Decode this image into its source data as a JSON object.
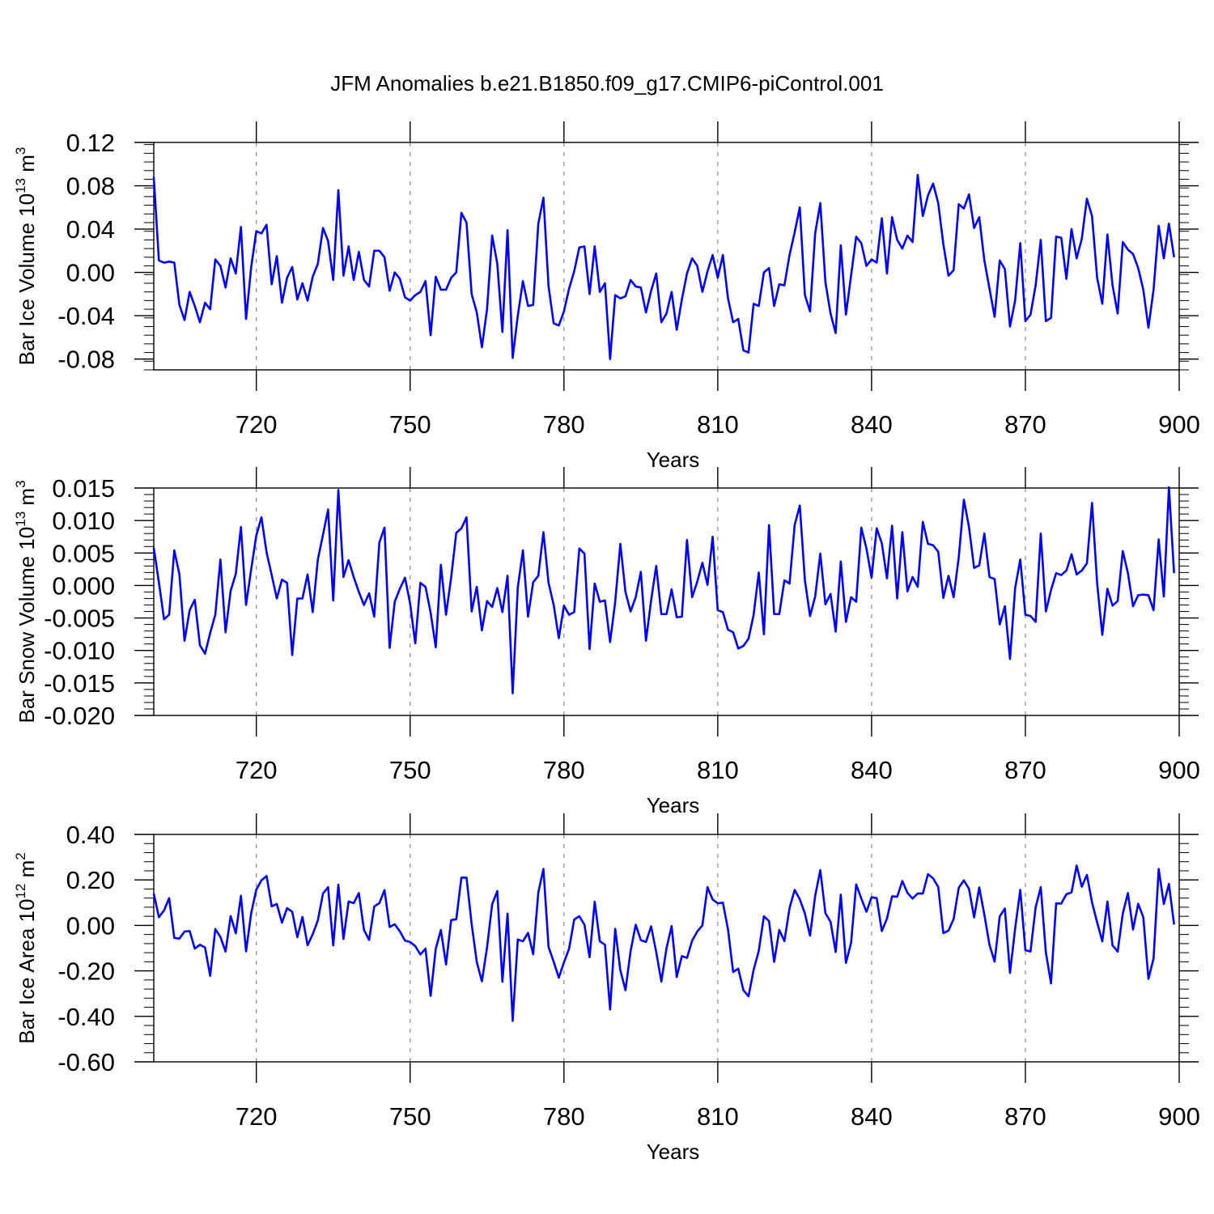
{
  "figure": {
    "title": "JFM Anomalies b.e21.B1850.f09_g17.CMIP6-piControl.001"
  },
  "colors": {
    "line": "#0000ff",
    "axis": "#000000",
    "grid": "#888888"
  },
  "chart_data": [
    {
      "type": "line",
      "ylabel": "Bar Ice Volume 10",
      "ylabel_exp": "13",
      "ylabel_unit": " m",
      "ylabel_unit_exp": "3",
      "xlabel": "Years",
      "xlim": [
        700,
        900
      ],
      "ylim": [
        -0.09,
        0.12
      ],
      "x_ticks": [
        720,
        750,
        780,
        810,
        840,
        870,
        900
      ],
      "x_tick_labels": [
        "720",
        "750",
        "780",
        "810",
        "840",
        "870",
        "900"
      ],
      "y_ticks": [
        -0.08,
        -0.04,
        0.0,
        0.04,
        0.08,
        0.12
      ],
      "y_tick_labels": [
        "-0.08",
        "-0.04",
        "0.00",
        "0.04",
        "0.08",
        "0.12"
      ],
      "y_minor_step": 0.008,
      "x_start": 700,
      "series": [
        {
          "name": "Bar Ice Volume",
          "values": [
            0.088,
            0.011,
            0.009,
            0.01,
            0.009,
            -0.03,
            -0.044,
            -0.018,
            -0.031,
            -0.046,
            -0.028,
            -0.034,
            0.012,
            0.006,
            -0.014,
            0.013,
            -0.001,
            0.042,
            -0.043,
            0.005,
            0.038,
            0.036,
            0.044,
            -0.011,
            0.015,
            -0.028,
            -0.005,
            0.005,
            -0.025,
            -0.01,
            -0.026,
            -0.004,
            0.008,
            0.041,
            0.029,
            -0.007,
            0.076,
            -0.003,
            0.024,
            -0.007,
            0.019,
            -0.007,
            -0.013,
            0.02,
            0.02,
            0.014,
            -0.017,
            0.0,
            -0.006,
            -0.023,
            -0.026,
            -0.021,
            -0.018,
            -0.008,
            -0.058,
            -0.004,
            -0.016,
            -0.016,
            -0.005,
            0.0,
            0.055,
            0.046,
            -0.02,
            -0.037,
            -0.069,
            -0.034,
            0.034,
            0.008,
            -0.055,
            0.039,
            -0.079,
            -0.04,
            -0.008,
            -0.031,
            -0.03,
            0.045,
            0.069,
            -0.013,
            -0.047,
            -0.049,
            -0.036,
            -0.015,
            0.001,
            0.023,
            0.024,
            -0.02,
            0.024,
            -0.018,
            -0.01,
            -0.08,
            -0.021,
            -0.024,
            -0.022,
            -0.007,
            -0.013,
            -0.014,
            -0.037,
            -0.017,
            -0.001,
            -0.046,
            -0.038,
            -0.018,
            -0.053,
            -0.025,
            -0.001,
            0.013,
            0.006,
            -0.018,
            0.001,
            0.016,
            -0.005,
            0.016,
            -0.024,
            -0.046,
            -0.043,
            -0.072,
            -0.074,
            -0.029,
            -0.031,
            0.0,
            0.004,
            -0.031,
            -0.011,
            -0.012,
            0.016,
            0.037,
            0.06,
            -0.021,
            -0.036,
            0.036,
            0.064,
            -0.009,
            -0.038,
            -0.056,
            0.025,
            -0.039,
            -0.003,
            0.033,
            0.027,
            0.006,
            0.012,
            0.009,
            0.05,
            -0.001,
            0.051,
            0.03,
            0.022,
            0.034,
            0.028,
            0.09,
            0.052,
            0.071,
            0.082,
            0.064,
            0.026,
            -0.003,
            0.002,
            0.063,
            0.059,
            0.072,
            0.041,
            0.051,
            0.011,
            -0.015,
            -0.041,
            0.011,
            0.003,
            -0.05,
            -0.026,
            0.027,
            -0.045,
            -0.039,
            -0.012,
            0.03,
            -0.045,
            -0.042,
            0.033,
            0.032,
            -0.006,
            0.04,
            0.013,
            0.031,
            0.068,
            0.052,
            -0.005,
            -0.029,
            0.035,
            -0.012,
            -0.038,
            0.028,
            0.021,
            0.017,
            0.004,
            -0.016,
            -0.051,
            -0.016,
            0.043,
            0.013,
            0.045,
            0.014
          ]
        }
      ]
    },
    {
      "type": "line",
      "ylabel": "Bar Snow Volume 10",
      "ylabel_exp": "13",
      "ylabel_unit": " m",
      "ylabel_unit_exp": "3",
      "xlabel": "Years",
      "xlim": [
        700,
        900
      ],
      "ylim": [
        -0.02,
        0.015
      ],
      "x_ticks": [
        720,
        750,
        780,
        810,
        840,
        870,
        900
      ],
      "x_tick_labels": [
        "720",
        "750",
        "780",
        "810",
        "840",
        "870",
        "900"
      ],
      "y_ticks": [
        -0.02,
        -0.015,
        -0.01,
        -0.005,
        0.0,
        0.005,
        0.01,
        0.015
      ],
      "y_tick_labels": [
        "-0.020",
        "-0.015",
        "-0.010",
        "-0.005",
        "0.000",
        "0.005",
        "0.010",
        "0.015"
      ],
      "y_minor_step": 0.001,
      "x_start": 700,
      "series": [
        {
          "name": "Bar Snow Volume",
          "values": [
            0.0058,
            0.0005,
            -0.0052,
            -0.0045,
            0.0054,
            0.0017,
            -0.0085,
            -0.0038,
            -0.0022,
            -0.0092,
            -0.0105,
            -0.0073,
            -0.0045,
            0.004,
            -0.0072,
            -0.0008,
            0.0018,
            0.009,
            -0.003,
            0.0025,
            0.0077,
            0.0105,
            0.0051,
            0.0016,
            -0.002,
            0.0009,
            0.0004,
            -0.0107,
            -0.002,
            -0.002,
            0.0017,
            -0.0041,
            0.004,
            0.0078,
            0.0117,
            -0.0023,
            0.0147,
            0.0013,
            0.0039,
            0.0013,
            -0.001,
            -0.003,
            -0.0012,
            -0.0048,
            0.0066,
            0.0089,
            -0.0096,
            -0.0025,
            -0.0005,
            0.0012,
            -0.0028,
            -0.0089,
            0.0004,
            -0.0002,
            -0.0042,
            -0.0095,
            0.0032,
            -0.0045,
            0.0012,
            0.0081,
            0.0088,
            0.0105,
            -0.004,
            -0.0002,
            -0.0069,
            -0.0024,
            -0.0033,
            -0.0004,
            -0.0041,
            0.0015,
            -0.0166,
            -0.0003,
            0.0054,
            -0.0048,
            0.0005,
            0.0015,
            0.0082,
            0.0004,
            -0.003,
            -0.0081,
            -0.0031,
            -0.0045,
            -0.0041,
            0.0057,
            0.0049,
            -0.0098,
            0.0003,
            -0.0025,
            -0.0023,
            -0.0087,
            -0.0025,
            0.0064,
            -0.001,
            -0.004,
            -0.0018,
            0.0021,
            -0.0085,
            -0.0023,
            0.003,
            -0.0044,
            -0.0044,
            -0.0006,
            -0.0049,
            -0.0048,
            0.007,
            -0.0018,
            0.0006,
            0.0035,
            0.0001,
            0.0075,
            -0.0038,
            -0.0041,
            -0.0068,
            -0.0072,
            -0.0097,
            -0.0093,
            -0.0082,
            -0.0045,
            0.002,
            -0.0075,
            0.0093,
            -0.0044,
            -0.0044,
            0.0008,
            0.0003,
            0.0093,
            0.0123,
            0.0008,
            -0.0047,
            -0.0017,
            0.0049,
            -0.0029,
            -0.0013,
            -0.0071,
            0.0037,
            -0.0056,
            -0.0018,
            -0.0025,
            0.0089,
            0.0057,
            0.0012,
            0.0088,
            0.0065,
            0.0011,
            0.0092,
            -0.002,
            0.0082,
            -0.0009,
            0.0013,
            -0.0002,
            0.0098,
            0.0064,
            0.0062,
            0.0052,
            -0.0019,
            0.0015,
            -0.0018,
            0.0043,
            0.0132,
            0.009,
            0.0027,
            0.0031,
            0.008,
            0.0013,
            0.001,
            -0.006,
            -0.0032,
            -0.0113,
            -0.0004,
            0.004,
            -0.0045,
            -0.0047,
            -0.0056,
            0.008,
            -0.004,
            -0.0007,
            0.0019,
            0.0016,
            0.0023,
            0.0048,
            0.0017,
            0.0023,
            0.0034,
            0.0127,
            0.0003,
            -0.0076,
            -0.0005,
            -0.0031,
            -0.0024,
            0.0053,
            0.0019,
            -0.0032,
            -0.0015,
            -0.0014,
            -0.0015,
            -0.0038,
            0.0071,
            -0.0017,
            0.0151,
            0.0019
          ]
        }
      ]
    },
    {
      "type": "line",
      "ylabel": "Bar Ice Area 10",
      "ylabel_exp": "12",
      "ylabel_unit": " m",
      "ylabel_unit_exp": "2",
      "xlabel": "Years",
      "xlim": [
        700,
        900
      ],
      "ylim": [
        -0.6,
        0.4
      ],
      "x_ticks": [
        720,
        750,
        780,
        810,
        840,
        870,
        900
      ],
      "x_tick_labels": [
        "720",
        "750",
        "780",
        "810",
        "840",
        "870",
        "900"
      ],
      "y_ticks": [
        -0.6,
        -0.4,
        -0.2,
        0.0,
        0.2,
        0.4
      ],
      "y_tick_labels": [
        "-0.60",
        "-0.40",
        "-0.20",
        "0.00",
        "0.20",
        "0.40"
      ],
      "y_minor_step": 0.04,
      "x_start": 700,
      "series": [
        {
          "name": "Bar Ice Area",
          "values": [
            0.14,
            0.036,
            0.066,
            0.12,
            -0.055,
            -0.058,
            -0.027,
            -0.025,
            -0.102,
            -0.085,
            -0.097,
            -0.222,
            -0.016,
            -0.051,
            -0.115,
            0.041,
            -0.035,
            0.13,
            -0.114,
            0.054,
            0.157,
            0.198,
            0.217,
            0.084,
            0.094,
            0.012,
            0.076,
            0.06,
            -0.052,
            0.037,
            -0.087,
            -0.039,
            0.022,
            0.14,
            0.168,
            -0.088,
            0.179,
            -0.06,
            0.105,
            0.098,
            0.142,
            -0.02,
            -0.064,
            0.083,
            0.098,
            0.155,
            -0.007,
            0.005,
            -0.026,
            -0.067,
            -0.073,
            -0.091,
            -0.128,
            -0.102,
            -0.31,
            -0.103,
            -0.02,
            -0.172,
            0.023,
            0.027,
            0.21,
            0.21,
            0.006,
            -0.161,
            -0.246,
            -0.097,
            0.093,
            0.151,
            -0.248,
            0.052,
            -0.42,
            -0.062,
            -0.07,
            -0.033,
            -0.127,
            0.145,
            0.248,
            -0.095,
            -0.16,
            -0.23,
            -0.163,
            -0.103,
            0.026,
            0.04,
            0.003,
            -0.14,
            0.104,
            -0.07,
            -0.085,
            -0.37,
            -0.015,
            -0.197,
            -0.285,
            -0.113,
            0.003,
            -0.065,
            -0.073,
            -0.004,
            -0.118,
            -0.247,
            -0.101,
            -0.003,
            -0.227,
            -0.135,
            -0.143,
            -0.067,
            -0.027,
            0.0,
            0.168,
            0.114,
            0.097,
            0.1,
            -0.018,
            -0.205,
            -0.19,
            -0.285,
            -0.312,
            -0.195,
            -0.112,
            0.04,
            0.019,
            -0.16,
            -0.02,
            -0.069,
            0.076,
            0.156,
            0.115,
            0.052,
            -0.045,
            0.13,
            0.243,
            0.054,
            0.016,
            -0.117,
            0.135,
            -0.165,
            -0.077,
            0.18,
            0.118,
            0.06,
            0.124,
            0.12,
            -0.025,
            0.03,
            0.128,
            0.126,
            0.195,
            0.143,
            0.118,
            0.14,
            0.14,
            0.225,
            0.207,
            0.169,
            -0.034,
            -0.023,
            0.028,
            0.165,
            0.198,
            0.161,
            0.035,
            0.167,
            0.047,
            -0.086,
            -0.159,
            0.04,
            0.074,
            -0.209,
            -0.014,
            0.156,
            -0.109,
            -0.115,
            0.079,
            0.168,
            -0.12,
            -0.255,
            0.097,
            0.096,
            0.137,
            0.145,
            0.263,
            0.17,
            0.222,
            0.101,
            0.013,
            -0.07,
            0.105,
            -0.088,
            -0.115,
            0.052,
            0.142,
            -0.018,
            0.095,
            0.036,
            -0.235,
            -0.145,
            0.248,
            0.094,
            0.182,
            0.004
          ]
        }
      ]
    }
  ]
}
